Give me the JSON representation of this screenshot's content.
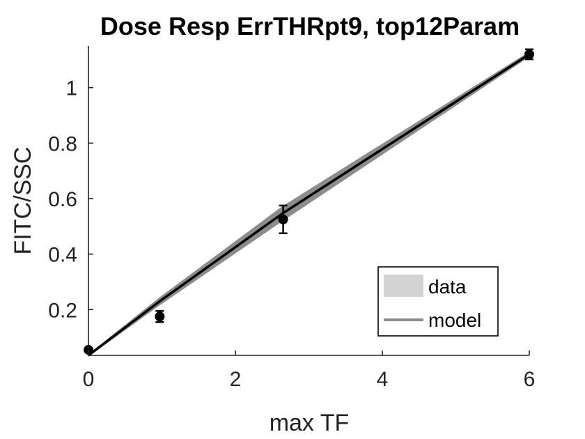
{
  "chart_data": {
    "type": "line",
    "title": "Dose Resp ErrTHRpt9, top12Param",
    "xlabel": "max TF",
    "ylabel": "FITC/SSC",
    "xlim": [
      0,
      6
    ],
    "ylim": [
      0.035,
      1.15
    ],
    "xticks": [
      0,
      2,
      4,
      6
    ],
    "xtick_labels": [
      "0",
      "2",
      "4",
      "6"
    ],
    "yticks": [
      0.2,
      0.4,
      0.6,
      0.8,
      1
    ],
    "ytick_labels": [
      "0.2",
      "0.4",
      "0.6",
      "0.8",
      "1"
    ],
    "grid": false,
    "legend": {
      "placement": "bottom-right",
      "entries": [
        {
          "label": "data",
          "color": "#d3d3d3",
          "kind": "patch"
        },
        {
          "label": "model",
          "color": "#8c8c8c",
          "kind": "line"
        }
      ]
    },
    "data_points": [
      {
        "x": 0.0,
        "y": 0.055,
        "err": 0.0
      },
      {
        "x": 0.97,
        "y": 0.175,
        "err": 0.02
      },
      {
        "x": 2.65,
        "y": 0.525,
        "err": 0.05
      },
      {
        "x": 6.0,
        "y": 1.12,
        "err": 0.018
      }
    ],
    "model_band": {
      "color": "#8c8c8c",
      "x": [
        0.0,
        0.97,
        2.65,
        6.0
      ],
      "lower": [
        0.035,
        0.22,
        0.525,
        1.115
      ],
      "upper": [
        0.035,
        0.24,
        0.57,
        1.125
      ]
    },
    "model_line": {
      "color": "#000000",
      "x": [
        0.0,
        0.97,
        2.65,
        6.0
      ],
      "y": [
        0.035,
        0.23,
        0.548,
        1.12
      ]
    }
  }
}
